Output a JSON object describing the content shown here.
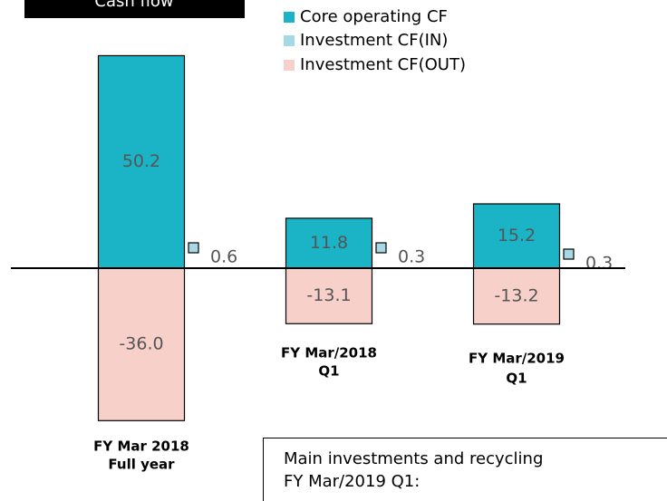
{
  "chart_data": {
    "type": "bar",
    "title": "Cash flow",
    "categories": [
      [
        "FY Mar 2018",
        "Full year"
      ],
      [
        "FY Mar/2018",
        "Q1"
      ],
      [
        "FY Mar/2019",
        "Q1"
      ]
    ],
    "series": [
      {
        "name": "Core operating CF",
        "color": "#1ab4c6",
        "values": [
          50.2,
          11.8,
          15.2
        ],
        "value_labels": [
          "50.2",
          "11.8",
          "15.2"
        ]
      },
      {
        "name": "Investment CF(IN)",
        "color": "#a7d8e6",
        "values": [
          0.6,
          0.3,
          0.3
        ],
        "value_labels": [
          "0.6",
          "0.3",
          "0.3"
        ]
      },
      {
        "name": "Investment CF(OUT)",
        "color": "#f8d0ca",
        "values": [
          -36.0,
          -13.1,
          -13.2
        ],
        "value_labels": [
          "-36.0",
          "-13.1",
          "-13.2"
        ]
      }
    ],
    "ylim": [
      -40,
      55
    ],
    "annotations": [
      "Main investments and recycling",
      "FY Mar/2019 Q1:"
    ]
  }
}
